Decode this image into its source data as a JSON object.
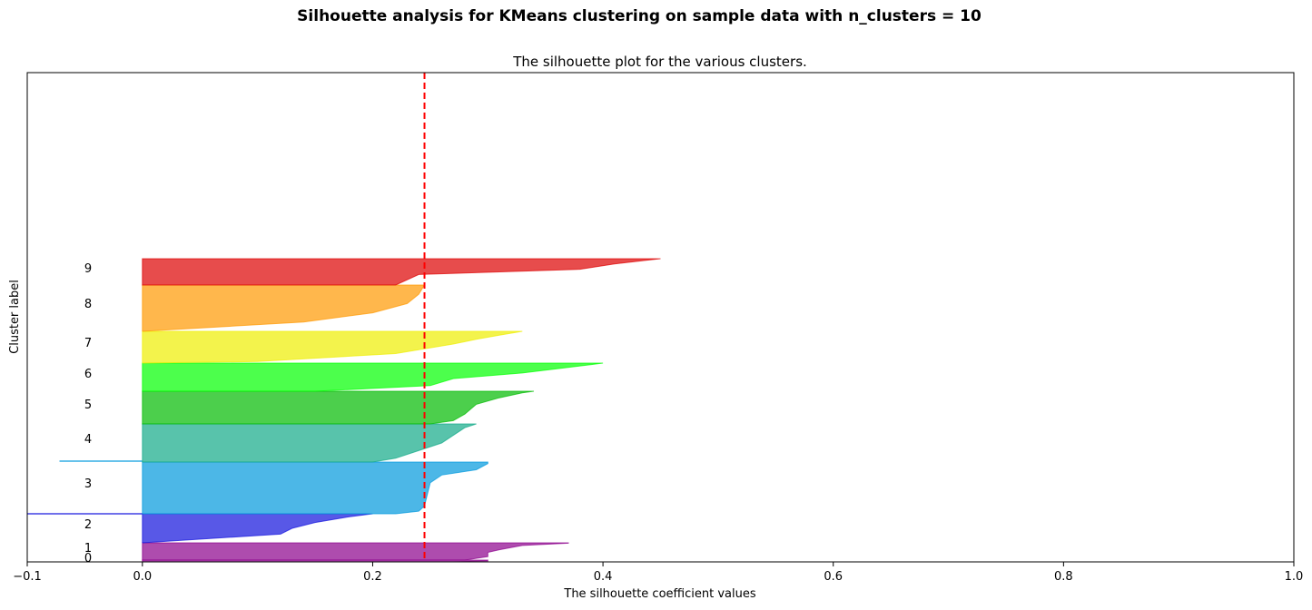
{
  "suptitle": "Silhouette analysis for KMeans clustering on sample data with n_clusters = 10",
  "chart_data": {
    "type": "area",
    "title": "The silhouette plot for the various clusters.",
    "xlabel": "The silhouette coefficient values",
    "ylabel": "Cluster label",
    "xlim": [
      -0.1,
      1.0
    ],
    "xticks": [
      -0.1,
      0.0,
      0.2,
      0.4,
      0.6,
      0.8,
      1.0
    ],
    "xtick_labels": [
      "−0.1",
      "0.0",
      "0.2",
      "0.4",
      "0.6",
      "0.8",
      "1.0"
    ],
    "yticks": [],
    "average_silhouette_score": 0.245,
    "average_line_color": "#ff0000",
    "grid": false,
    "clusters": [
      {
        "label": "0",
        "color": "#8b008b",
        "profile": [
          [
            0,
            0.27
          ],
          [
            0.5,
            0.3
          ],
          [
            1,
            0.3
          ]
        ]
      },
      {
        "label": "1",
        "color": "#8b008b",
        "profile": [
          [
            0,
            0.28
          ],
          [
            0.2,
            0.3
          ],
          [
            0.45,
            0.3
          ],
          [
            0.6,
            0.31
          ],
          [
            0.85,
            0.33
          ],
          [
            0.98,
            0.37
          ],
          [
            1,
            0.37
          ]
        ]
      },
      {
        "label": "2",
        "color": "#1111dd",
        "profile": [
          [
            0,
            0.0
          ],
          [
            0.3,
            0.12
          ],
          [
            0.5,
            0.13
          ],
          [
            0.7,
            0.15
          ],
          [
            0.9,
            0.18
          ],
          [
            1,
            0.2
          ]
        ]
      },
      {
        "label": "3",
        "color": "#0099dd",
        "profile": [
          [
            0,
            0.22
          ],
          [
            0.05,
            0.24
          ],
          [
            0.15,
            0.245
          ],
          [
            0.6,
            0.25
          ],
          [
            0.75,
            0.26
          ],
          [
            0.85,
            0.29
          ],
          [
            0.97,
            0.3
          ],
          [
            1,
            0.3
          ]
        ]
      },
      {
        "label": "4",
        "color": "#11aa88",
        "profile": [
          [
            0,
            0.2
          ],
          [
            0.1,
            0.22
          ],
          [
            0.3,
            0.24
          ],
          [
            0.5,
            0.26
          ],
          [
            0.7,
            0.27
          ],
          [
            0.9,
            0.28
          ],
          [
            1,
            0.29
          ]
        ]
      },
      {
        "label": "5",
        "color": "#00bb00",
        "profile": [
          [
            0,
            0.25
          ],
          [
            0.1,
            0.27
          ],
          [
            0.3,
            0.28
          ],
          [
            0.6,
            0.29
          ],
          [
            0.8,
            0.31
          ],
          [
            0.95,
            0.33
          ],
          [
            1,
            0.34
          ]
        ]
      },
      {
        "label": "6",
        "color": "#00ff00",
        "profile": [
          [
            0,
            0.15
          ],
          [
            0.2,
            0.25
          ],
          [
            0.45,
            0.27
          ],
          [
            0.65,
            0.33
          ],
          [
            0.8,
            0.36
          ],
          [
            0.95,
            0.39
          ],
          [
            1,
            0.4
          ]
        ]
      },
      {
        "label": "7",
        "color": "#eeee00",
        "profile": [
          [
            0,
            0.0
          ],
          [
            0.05,
            0.1
          ],
          [
            0.3,
            0.22
          ],
          [
            0.6,
            0.27
          ],
          [
            0.75,
            0.29
          ],
          [
            0.88,
            0.31
          ],
          [
            1,
            0.33
          ]
        ]
      },
      {
        "label": "8",
        "color": "#ff9900",
        "profile": [
          [
            0,
            0.0
          ],
          [
            0.2,
            0.14
          ],
          [
            0.4,
            0.2
          ],
          [
            0.6,
            0.23
          ],
          [
            0.8,
            0.24
          ],
          [
            1,
            0.245
          ]
        ]
      },
      {
        "label": "9",
        "color": "#dd0000",
        "profile": [
          [
            0,
            0.22
          ],
          [
            0.4,
            0.24
          ],
          [
            0.6,
            0.38
          ],
          [
            0.8,
            0.41
          ],
          [
            0.95,
            0.44
          ],
          [
            1,
            0.45
          ]
        ]
      }
    ]
  }
}
